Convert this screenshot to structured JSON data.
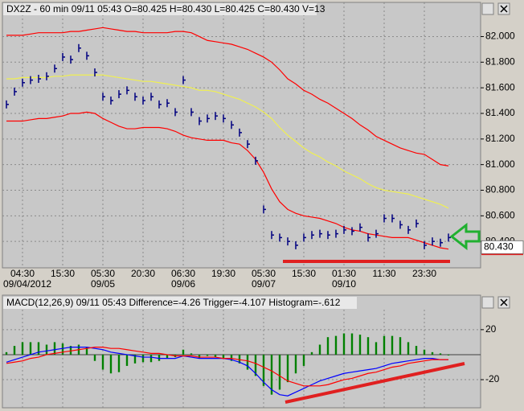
{
  "chart_data": [
    {
      "type": "stock",
      "title": "DX2Z - 60 min 09/11 05:43 O=80.425 H=80.430 L=80.425 C=80.430 V=13",
      "categories": [
        null,
        null,
        "04:30",
        null,
        null,
        null,
        null,
        "15:30",
        null,
        null,
        null,
        null,
        "05:30",
        null,
        null,
        null,
        null,
        "20:30",
        null,
        null,
        null,
        null,
        "06:30",
        null,
        null,
        null,
        null,
        "19:30",
        null,
        null,
        null,
        null,
        "05:30",
        null,
        null,
        null,
        null,
        "15:30",
        null,
        null,
        null,
        null,
        "01:30",
        null,
        null,
        null,
        null,
        "11:30",
        null,
        null,
        null,
        null,
        "23:30",
        null,
        null,
        null
      ],
      "dates": [
        null,
        null,
        "09/04/2012",
        null,
        null,
        null,
        null,
        null,
        null,
        null,
        null,
        null,
        "09/05",
        null,
        null,
        null,
        null,
        null,
        null,
        null,
        null,
        null,
        "09/06",
        null,
        null,
        null,
        null,
        null,
        null,
        null,
        null,
        null,
        "09/07",
        null,
        null,
        null,
        null,
        null,
        null,
        null,
        null,
        null,
        "09/10",
        null,
        null,
        null,
        null,
        null,
        null,
        null,
        null,
        null,
        null,
        null,
        null,
        null
      ],
      "series": [
        {
          "style": "bar",
          "color": "#000080",
          "values": [
            81.47,
            81.57,
            81.64,
            81.66,
            81.67,
            81.69,
            81.75,
            81.84,
            81.82,
            81.91,
            81.85,
            81.72,
            81.53,
            81.5,
            81.55,
            81.58,
            81.53,
            81.5,
            81.53,
            81.47,
            81.48,
            81.41,
            81.66,
            81.41,
            81.34,
            81.36,
            81.38,
            81.36,
            81.31,
            81.25,
            81.16,
            81.03,
            80.65,
            80.45,
            80.43,
            80.4,
            80.37,
            80.43,
            80.45,
            80.46,
            80.45,
            80.46,
            80.49,
            80.48,
            80.51,
            80.43,
            80.46,
            80.58,
            80.58,
            80.53,
            80.49,
            80.54,
            80.37,
            80.4,
            80.39,
            80.43
          ]
        },
        {
          "style": "line",
          "color": "#ff0000",
          "values": [
            82.01,
            82.01,
            82.01,
            82.02,
            82.03,
            82.03,
            82.03,
            82.03,
            82.04,
            82.04,
            82.05,
            82.06,
            82.07,
            82.06,
            82.05,
            82.04,
            82.04,
            82.03,
            82.03,
            82.03,
            82.03,
            82.04,
            82.04,
            82.03,
            82.0,
            81.97,
            81.96,
            81.95,
            81.94,
            81.92,
            81.9,
            81.87,
            81.84,
            81.8,
            81.74,
            81.67,
            81.63,
            81.58,
            81.55,
            81.51,
            81.48,
            81.44,
            81.4,
            81.36,
            81.31,
            81.27,
            81.22,
            81.19,
            81.16,
            81.13,
            81.11,
            81.09,
            81.08,
            81.04,
            81.0,
            80.99
          ]
        },
        {
          "style": "line",
          "color": "#ff0000",
          "values": [
            81.34,
            81.34,
            81.34,
            81.35,
            81.36,
            81.36,
            81.37,
            81.38,
            81.4,
            81.4,
            81.41,
            81.4,
            81.36,
            81.33,
            81.3,
            81.28,
            81.28,
            81.29,
            81.29,
            81.29,
            81.28,
            81.26,
            81.23,
            81.21,
            81.2,
            81.19,
            81.19,
            81.19,
            81.17,
            81.16,
            81.11,
            81.04,
            80.94,
            80.81,
            80.71,
            80.65,
            80.62,
            80.6,
            80.59,
            80.58,
            80.56,
            80.54,
            80.51,
            80.49,
            80.48,
            80.46,
            80.45,
            80.44,
            80.43,
            80.43,
            80.43,
            80.41,
            80.39,
            80.37,
            80.35,
            80.34
          ]
        },
        {
          "style": "line",
          "color": "#f0f050",
          "values": [
            81.67,
            81.67,
            81.68,
            81.68,
            81.68,
            81.68,
            81.69,
            81.69,
            81.7,
            81.7,
            81.7,
            81.7,
            81.7,
            81.69,
            81.68,
            81.67,
            81.66,
            81.65,
            81.65,
            81.64,
            81.63,
            81.62,
            81.61,
            81.6,
            81.58,
            81.58,
            81.57,
            81.55,
            81.53,
            81.51,
            81.48,
            81.45,
            81.41,
            81.36,
            81.29,
            81.23,
            81.18,
            81.13,
            81.09,
            81.06,
            81.02,
            80.99,
            80.95,
            80.92,
            80.89,
            80.85,
            80.82,
            80.8,
            80.79,
            80.78,
            80.77,
            80.75,
            80.73,
            80.71,
            80.69,
            80.66
          ]
        }
      ],
      "last": {
        "value": 80.43,
        "label": "80.430"
      },
      "ylim": [
        80.2,
        82.16
      ],
      "yticks": [
        {
          "value": 80.4,
          "label": "80.400"
        },
        {
          "value": 80.6,
          "label": "80.600"
        },
        {
          "value": 80.8,
          "label": "80.800"
        },
        {
          "value": 81.0,
          "label": "81.000"
        },
        {
          "value": 81.2,
          "label": "81.200"
        },
        {
          "value": 81.4,
          "label": "81.400"
        },
        {
          "value": 81.6,
          "label": "81.600"
        },
        {
          "value": 81.8,
          "label": "81.800"
        },
        {
          "value": 82.0,
          "label": "82.000"
        }
      ],
      "grid": true
    },
    {
      "type": "macd",
      "title": "MACD(12,26,9) 09/11 05:43 Difference=-4.26 Trigger=-4.107 Histogram=-.612",
      "series": [
        {
          "style": "bar",
          "color": "#008000",
          "values": [
            2,
            7,
            10,
            10,
            10,
            8,
            10,
            9,
            7,
            8,
            6,
            -5,
            -12,
            -15,
            -14,
            -9,
            -7,
            -6,
            -6,
            -5,
            -3,
            -2,
            4,
            1,
            -3,
            -1,
            -2,
            -3,
            -5,
            -7,
            -12,
            -17,
            -25,
            -32,
            -28,
            -22,
            -15,
            -9,
            2,
            8,
            14,
            15,
            17,
            17,
            16,
            14,
            10,
            15,
            15,
            14,
            10,
            7,
            4,
            2,
            1,
            -0.6
          ]
        },
        {
          "style": "line",
          "color": "#0000ff",
          "values": [
            -6,
            -4,
            -2,
            0,
            2,
            3,
            4,
            5,
            6,
            6,
            6,
            5,
            4,
            2,
            1,
            0,
            -1,
            -2,
            -2,
            -3,
            -3,
            -3,
            -1,
            -2,
            -3,
            -3,
            -3,
            -3,
            -4,
            -6,
            -9,
            -15,
            -22,
            -28,
            -32,
            -33,
            -30,
            -27,
            -24,
            -21,
            -19,
            -17,
            -15,
            -14,
            -13,
            -12,
            -11,
            -9,
            -7,
            -6,
            -5,
            -4,
            -3,
            -3,
            -4,
            -4
          ]
        },
        {
          "style": "line",
          "color": "#ff0000",
          "values": [
            -7,
            -6,
            -5,
            -3,
            -2,
            0,
            1,
            2,
            3,
            4,
            5,
            6,
            6,
            5,
            5,
            4,
            3,
            2,
            1,
            1,
            0,
            -1,
            -1,
            -1,
            -2,
            -2,
            -2,
            -3,
            -3,
            -4,
            -5,
            -7,
            -10,
            -13,
            -17,
            -21,
            -23,
            -25,
            -25,
            -25,
            -24,
            -22,
            -20,
            -19,
            -17,
            -15,
            -14,
            -12,
            -10,
            -9,
            -7,
            -6,
            -5,
            -4,
            -4,
            -4
          ]
        }
      ],
      "ylim": [
        -38,
        36
      ],
      "yticks": [
        -20,
        20
      ],
      "grid": true
    }
  ]
}
